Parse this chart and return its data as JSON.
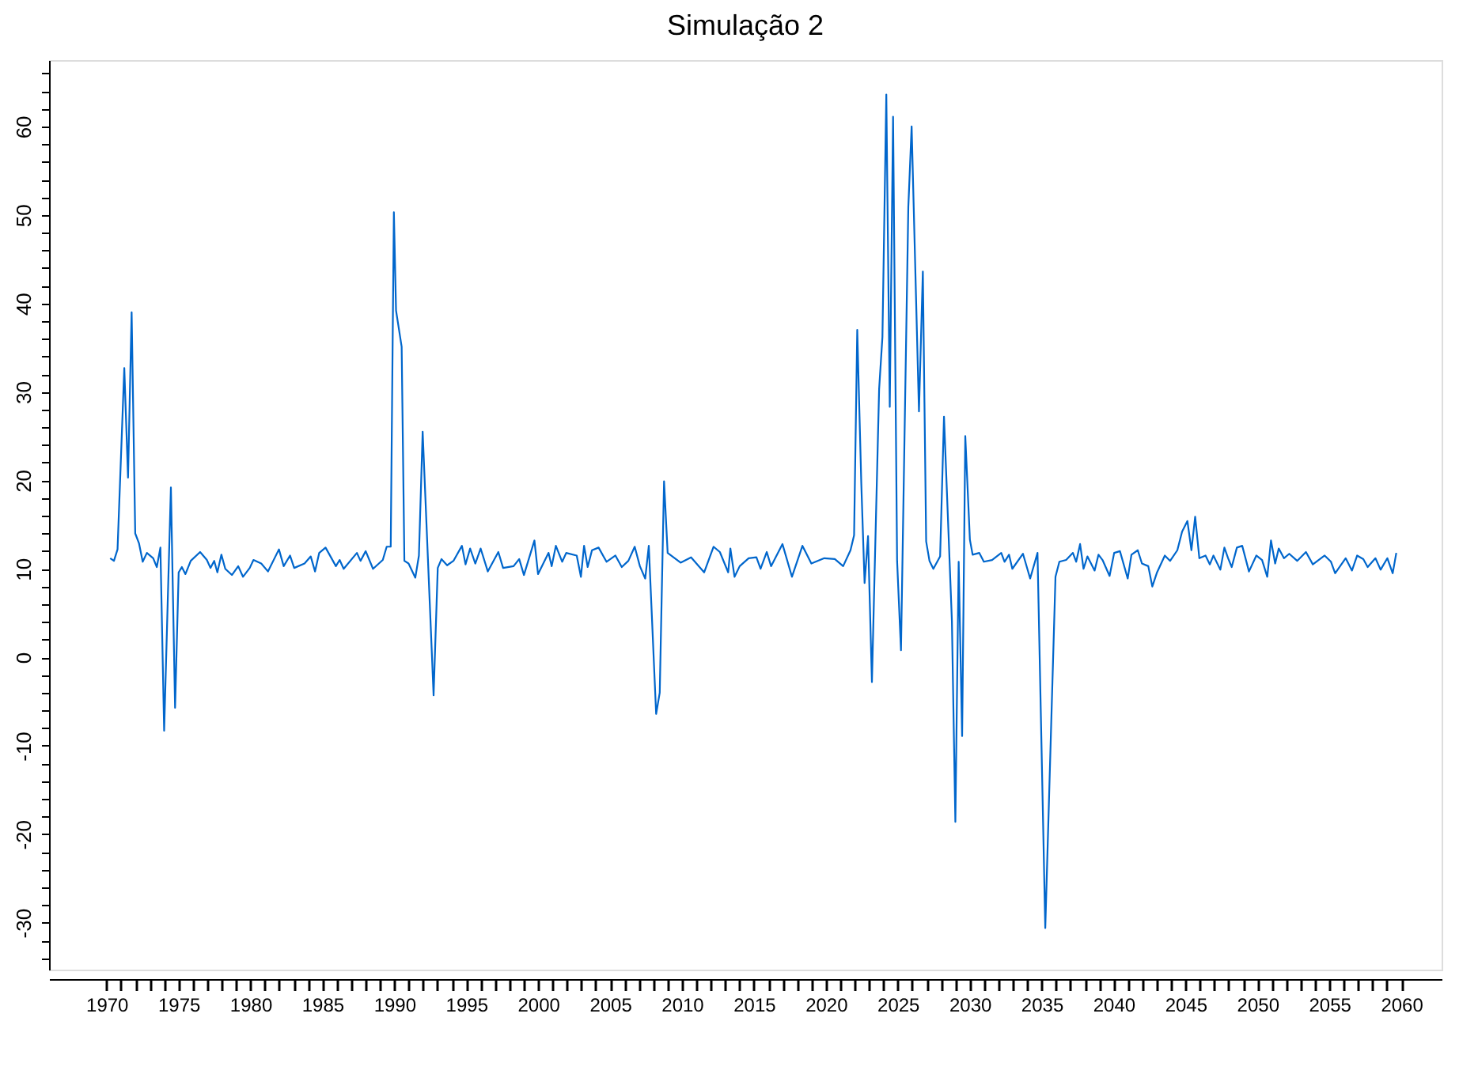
{
  "chart_data": {
    "type": "line",
    "title": "Simulação 2",
    "x": [
      1970.25,
      1970.51,
      1970.76,
      1971.23,
      1971.49,
      1971.74,
      1971.99,
      1972.25,
      1972.51,
      1972.8,
      1973.24,
      1973.49,
      1973.74,
      1974.0,
      1974.47,
      1974.76,
      1975.01,
      1975.23,
      1975.48,
      1975.85,
      1976.5,
      1976.97,
      1977.22,
      1977.48,
      1977.7,
      1977.98,
      1978.25,
      1978.71,
      1979.15,
      1979.48,
      1979.95,
      1980.21,
      1980.75,
      1981.22,
      1981.98,
      1982.31,
      1982.75,
      1983.04,
      1983.76,
      1984.19,
      1984.49,
      1984.78,
      1985.22,
      1985.94,
      1986.2,
      1986.48,
      1987.4,
      1987.65,
      1988.01,
      1988.52,
      1989.2,
      1989.47,
      1989.75,
      1989.97,
      1990.12,
      1990.51,
      1990.7,
      1990.99,
      1991.46,
      1991.71,
      1991.97,
      1992.73,
      1993.02,
      1993.28,
      1993.67,
      1994.11,
      1994.7,
      1994.95,
      1995.27,
      1995.63,
      1996.0,
      1996.5,
      1997.23,
      1997.56,
      1998.29,
      1998.68,
      1999.01,
      1999.74,
      1999.99,
      2000.72,
      2000.94,
      2001.23,
      2001.67,
      2001.95,
      2002.68,
      2002.97,
      2003.19,
      2003.44,
      2003.74,
      2004.2,
      2004.75,
      2005.37,
      2005.81,
      2006.27,
      2006.71,
      2007.07,
      2007.44,
      2007.69,
      2008.2,
      2008.45,
      2008.75,
      2009.0,
      2009.9,
      2010.63,
      2011.54,
      2012.19,
      2012.63,
      2013.21,
      2013.36,
      2013.65,
      2014.01,
      2014.63,
      2015.17,
      2015.46,
      2015.89,
      2016.19,
      2016.98,
      2017.64,
      2018.37,
      2018.99,
      2019.89,
      2020.62,
      2021.2,
      2021.71,
      2021.96,
      2022.18,
      2022.46,
      2022.69,
      2022.93,
      2023.2,
      2023.7,
      2023.93,
      2024.2,
      2024.44,
      2024.67,
      2024.95,
      2025.22,
      2025.73,
      2025.96,
      2026.47,
      2026.74,
      2026.97,
      2027.2,
      2027.47,
      2027.94,
      2028.21,
      2028.76,
      2029.0,
      2029.23,
      2029.47,
      2029.69,
      2030.01,
      2030.2,
      2030.66,
      2030.98,
      2031.55,
      2032.19,
      2032.42,
      2032.73,
      2032.96,
      2033.7,
      2034.2,
      2034.71,
      2035.25,
      2035.96,
      2036.23,
      2036.7,
      2037.17,
      2037.4,
      2037.67,
      2037.91,
      2038.18,
      2038.68,
      2038.95,
      2039.23,
      2039.72,
      2040.04,
      2040.44,
      2040.98,
      2041.24,
      2041.68,
      2041.97,
      2042.41,
      2042.69,
      2043.02,
      2043.56,
      2043.93,
      2044.43,
      2044.76,
      2045.13,
      2045.41,
      2045.67,
      2045.96,
      2046.39,
      2046.69,
      2046.94,
      2047.42,
      2047.7,
      2047.96,
      2048.21,
      2048.57,
      2048.94,
      2049.41,
      2049.92,
      2050.32,
      2050.68,
      2050.94,
      2051.23,
      2051.48,
      2051.84,
      2052.21,
      2052.76,
      2053.37,
      2053.85,
      2054.67,
      2055.11,
      2055.4,
      2056.13,
      2056.57,
      2056.93,
      2057.36,
      2057.66,
      2058.2,
      2058.56,
      2059.03,
      2059.4,
      2059.65
    ],
    "series": [
      {
        "color": "#0066cc",
        "values": [
          11.2,
          10.9,
          12.2,
          32.7,
          20.3,
          39.0,
          14.0,
          12.9,
          10.8,
          11.8,
          11.2,
          10.2,
          12.4,
          -8.3,
          19.2,
          -5.7,
          9.6,
          10.2,
          9.4,
          10.9,
          11.9,
          11.0,
          10.1,
          10.9,
          9.6,
          11.6,
          10.0,
          9.3,
          10.3,
          9.1,
          10.1,
          11.0,
          10.6,
          9.7,
          12.2,
          10.3,
          11.5,
          10.1,
          10.6,
          11.4,
          9.7,
          11.8,
          12.4,
          10.3,
          11.0,
          10.0,
          11.8,
          10.9,
          12.0,
          10.0,
          11.0,
          12.5,
          12.5,
          50.3,
          39.2,
          35.1,
          10.9,
          10.6,
          9.0,
          11.5,
          25.5,
          -4.3,
          10.1,
          11.1,
          10.4,
          10.9,
          12.6,
          10.5,
          12.3,
          10.6,
          12.3,
          9.7,
          11.9,
          10.1,
          10.3,
          11.1,
          9.3,
          13.2,
          9.4,
          11.8,
          10.3,
          12.6,
          10.8,
          11.8,
          11.5,
          9.1,
          12.6,
          10.2,
          12.1,
          12.4,
          10.8,
          11.5,
          10.2,
          10.9,
          12.5,
          10.3,
          8.9,
          12.6,
          -6.4,
          -4.0,
          19.9,
          11.8,
          10.7,
          11.3,
          9.6,
          12.5,
          11.9,
          9.6,
          12.3,
          9.1,
          10.3,
          11.2,
          11.3,
          10.0,
          11.9,
          10.3,
          12.8,
          9.1,
          12.6,
          10.6,
          11.2,
          11.1,
          10.3,
          12.1,
          13.8,
          37.0,
          19.7,
          8.4,
          13.7,
          -2.8,
          30.3,
          36.2,
          63.6,
          28.3,
          61.1,
          10.9,
          0.8,
          50.9,
          60.0,
          27.8,
          43.6,
          13.1,
          10.9,
          10.0,
          11.4,
          27.2,
          4.1,
          -18.6,
          10.8,
          -8.9,
          25.0,
          13.3,
          11.6,
          11.8,
          10.8,
          11.0,
          11.8,
          10.8,
          11.6,
          10.0,
          11.7,
          8.9,
          11.8,
          -30.6,
          9.1,
          10.8,
          11.0,
          11.8,
          10.8,
          12.8,
          10.0,
          11.4,
          9.8,
          11.6,
          11.0,
          9.2,
          11.8,
          12.0,
          8.9,
          11.6,
          12.1,
          10.6,
          10.3,
          8.0,
          9.6,
          11.5,
          10.9,
          12.1,
          14.2,
          15.4,
          12.1,
          15.9,
          11.2,
          11.5,
          10.5,
          11.5,
          9.9,
          12.4,
          11.2,
          10.2,
          12.4,
          12.6,
          9.7,
          11.5,
          11.0,
          9.1,
          13.2,
          10.6,
          12.3,
          11.2,
          11.7,
          10.9,
          11.9,
          10.5,
          11.5,
          10.8,
          9.5,
          11.2,
          9.8,
          11.5,
          11.1,
          10.2,
          11.2,
          9.9,
          11.2,
          9.5,
          11.8
        ]
      }
    ],
    "xlim": [
      1966,
      2062.8
    ],
    "xticks": [
      1970,
      {
        "value": 1971,
        "label": null
      },
      {
        "value": 1972,
        "label": null
      },
      {
        "value": 1973,
        "label": null
      },
      {
        "value": 1974,
        "label": null
      },
      1975,
      {
        "value": 1976,
        "label": null
      },
      {
        "value": 1977,
        "label": null
      },
      {
        "value": 1978,
        "label": null
      },
      {
        "value": 1979,
        "label": null
      },
      1980,
      {
        "value": 1981,
        "label": null
      },
      {
        "value": 1982,
        "label": null
      },
      {
        "value": 1983,
        "label": null
      },
      {
        "value": 1984,
        "label": null
      },
      1985,
      {
        "value": 1986,
        "label": null
      },
      {
        "value": 1987,
        "label": null
      },
      {
        "value": 1988,
        "label": null
      },
      {
        "value": 1989,
        "label": null
      },
      1990,
      {
        "value": 1991,
        "label": null
      },
      {
        "value": 1992,
        "label": null
      },
      {
        "value": 1993,
        "label": null
      },
      {
        "value": 1994,
        "label": null
      },
      1995,
      {
        "value": 1996,
        "label": null
      },
      {
        "value": 1997,
        "label": null
      },
      {
        "value": 1998,
        "label": null
      },
      {
        "value": 1999,
        "label": null
      },
      2000,
      {
        "value": 2001,
        "label": null
      },
      {
        "value": 2002,
        "label": null
      },
      {
        "value": 2003,
        "label": null
      },
      {
        "value": 2004,
        "label": null
      },
      2005,
      {
        "value": 2006,
        "label": null
      },
      {
        "value": 2007,
        "label": null
      },
      {
        "value": 2008,
        "label": null
      },
      {
        "value": 2009,
        "label": null
      },
      2010,
      {
        "value": 2011,
        "label": null
      },
      {
        "value": 2012,
        "label": null
      },
      {
        "value": 2013,
        "label": null
      },
      {
        "value": 2014,
        "label": null
      },
      2015,
      {
        "value": 2016,
        "label": null
      },
      {
        "value": 2017,
        "label": null
      },
      {
        "value": 2018,
        "label": null
      },
      {
        "value": 2019,
        "label": null
      },
      2020,
      {
        "value": 2021,
        "label": null
      },
      {
        "value": 2022,
        "label": null
      },
      {
        "value": 2023,
        "label": null
      },
      {
        "value": 2024,
        "label": null
      },
      2025,
      {
        "value": 2026,
        "label": null
      },
      {
        "value": 2027,
        "label": null
      },
      {
        "value": 2028,
        "label": null
      },
      {
        "value": 2029,
        "label": null
      },
      2030,
      {
        "value": 2031,
        "label": null
      },
      {
        "value": 2032,
        "label": null
      },
      {
        "value": 2033,
        "label": null
      },
      {
        "value": 2034,
        "label": null
      },
      2035,
      {
        "value": 2036,
        "label": null
      },
      {
        "value": 2037,
        "label": null
      },
      {
        "value": 2038,
        "label": null
      },
      {
        "value": 2039,
        "label": null
      },
      2040,
      {
        "value": 2041,
        "label": null
      },
      {
        "value": 2042,
        "label": null
      },
      {
        "value": 2043,
        "label": null
      },
      {
        "value": 2044,
        "label": null
      },
      2045,
      {
        "value": 2046,
        "label": null
      },
      {
        "value": 2047,
        "label": null
      },
      {
        "value": 2048,
        "label": null
      },
      {
        "value": 2049,
        "label": null
      },
      2050,
      {
        "value": 2051,
        "label": null
      },
      {
        "value": 2052,
        "label": null
      },
      {
        "value": 2053,
        "label": null
      },
      {
        "value": 2054,
        "label": null
      },
      2055,
      {
        "value": 2056,
        "label": null
      },
      {
        "value": 2057,
        "label": null
      },
      {
        "value": 2058,
        "label": null
      },
      {
        "value": 2059,
        "label": null
      },
      2060
    ],
    "ylim": [
      -35.3,
      67.5
    ],
    "yticks": [
      {
        "value": -34,
        "label": null
      },
      {
        "value": -32,
        "label": null
      },
      -30,
      {
        "value": -28,
        "label": null
      },
      {
        "value": -26,
        "label": null
      },
      {
        "value": -24,
        "label": null
      },
      {
        "value": -22,
        "label": null
      },
      -20,
      {
        "value": -18,
        "label": null
      },
      {
        "value": -16,
        "label": null
      },
      {
        "value": -14,
        "label": null
      },
      {
        "value": -12,
        "label": null
      },
      -10,
      {
        "value": -8,
        "label": null
      },
      {
        "value": -6,
        "label": null
      },
      {
        "value": -4,
        "label": null
      },
      {
        "value": -2,
        "label": null
      },
      0,
      {
        "value": 2,
        "label": null
      },
      {
        "value": 4,
        "label": null
      },
      {
        "value": 6,
        "label": null
      },
      {
        "value": 8,
        "label": null
      },
      10,
      {
        "value": 12,
        "label": null
      },
      {
        "value": 14,
        "label": null
      },
      {
        "value": 16,
        "label": null
      },
      {
        "value": 18,
        "label": null
      },
      20,
      {
        "value": 22,
        "label": null
      },
      {
        "value": 24,
        "label": null
      },
      {
        "value": 26,
        "label": null
      },
      {
        "value": 28,
        "label": null
      },
      30,
      {
        "value": 32,
        "label": null
      },
      {
        "value": 34,
        "label": null
      },
      {
        "value": 36,
        "label": null
      },
      {
        "value": 38,
        "label": null
      },
      40,
      {
        "value": 42,
        "label": null
      },
      {
        "value": 44,
        "label": null
      },
      {
        "value": 46,
        "label": null
      },
      {
        "value": 48,
        "label": null
      },
      50,
      {
        "value": 52,
        "label": null
      },
      {
        "value": 54,
        "label": null
      },
      {
        "value": 56,
        "label": null
      },
      {
        "value": 58,
        "label": null
      },
      60,
      {
        "value": 62,
        "label": null
      },
      {
        "value": 64,
        "label": null
      },
      {
        "value": 66,
        "label": null
      }
    ],
    "grid": false,
    "marker": "none",
    "line_style": "solid"
  }
}
